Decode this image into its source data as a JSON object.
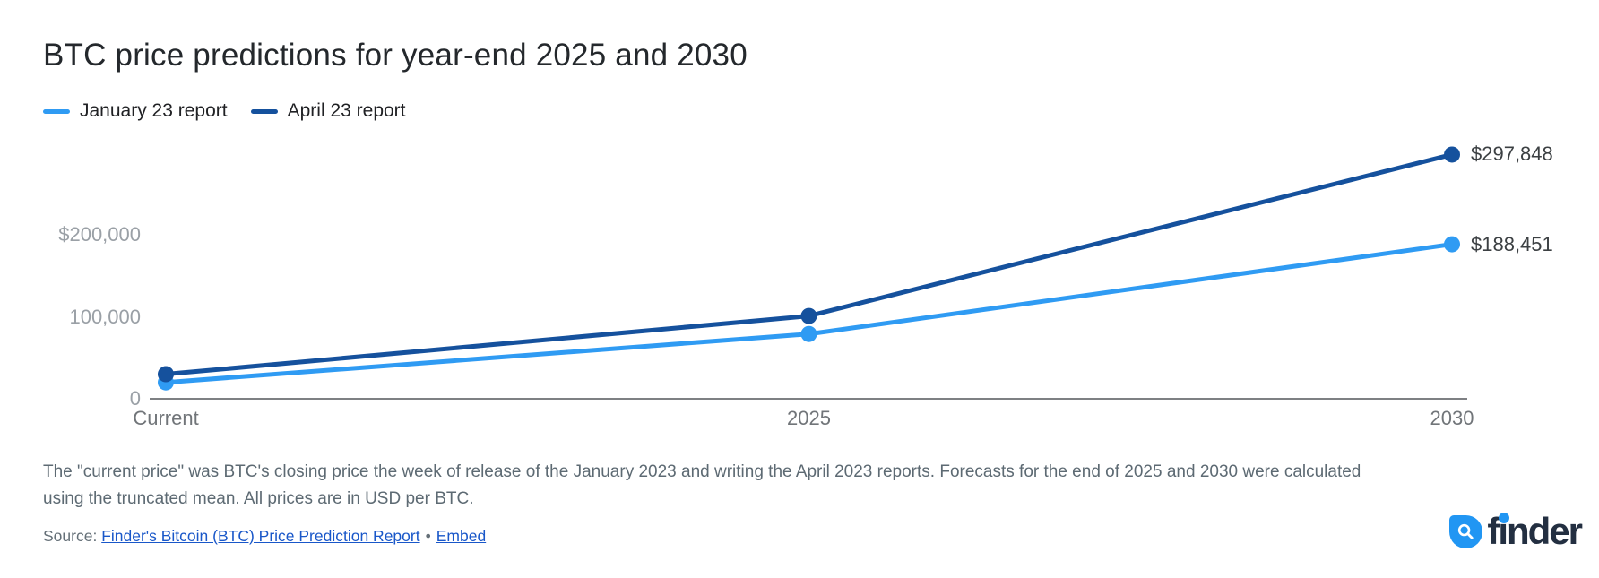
{
  "title": "BTC price predictions for year-end 2025 and 2030",
  "chart_data": {
    "type": "line",
    "categories": [
      "Current",
      "2025",
      "2030"
    ],
    "series": [
      {
        "name": "January 23 report",
        "color": "#2f9bf3",
        "values": [
          20000,
          79000,
          188451
        ],
        "end_label": "$188,451"
      },
      {
        "name": "April 23 report",
        "color": "#15519d",
        "values": [
          30000,
          101000,
          297848
        ],
        "end_label": "$297,848"
      }
    ],
    "yticks": [
      {
        "label": "$200,000",
        "value": 200000
      },
      {
        "label": "100,000",
        "value": 100000
      },
      {
        "label": "0",
        "value": 0
      }
    ],
    "ylim": [
      0,
      330000
    ],
    "xlabel": "",
    "ylabel": "",
    "grid": false,
    "legend_position": "top-left",
    "notes": "Only 2030 endpoints carry data labels; Current and 2025 values estimated from axis scale"
  },
  "footnote": "The \"current price\" was BTC's closing price the week of release of the January 2023 and writing the April 2023 reports. Forecasts for the end of 2025 and 2030 were calculated using the truncated mean. All prices are in USD per BTC.",
  "source": {
    "prefix": "Source: ",
    "report_link": "Finder's Bitcoin (BTC) Price Prediction Report",
    "separator": "•",
    "embed_link": "Embed"
  },
  "logo": {
    "text": "finder"
  }
}
